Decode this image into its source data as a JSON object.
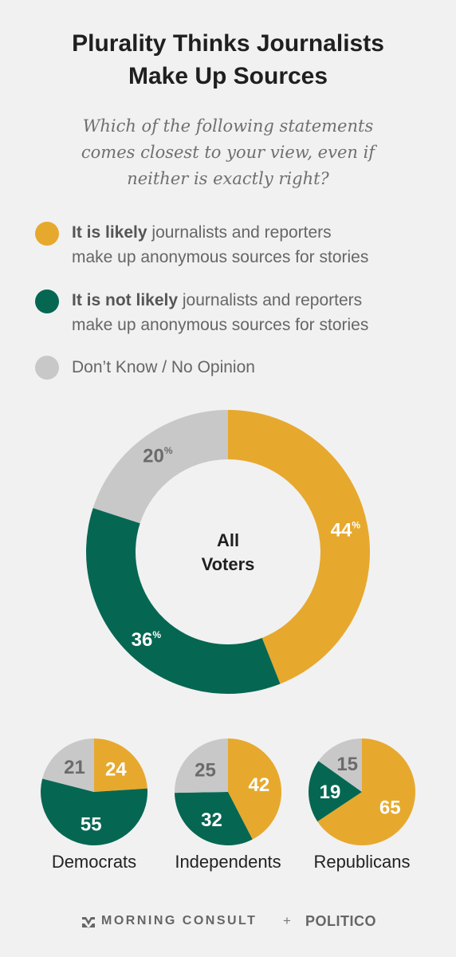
{
  "title": {
    "line1": "Plurality Thinks Journalists",
    "line2": "Make Up Sources"
  },
  "subtitle": {
    "line1": "Which of the following statements",
    "line2": "comes closest to your view, even if",
    "line3": "neither is exactly right?"
  },
  "legend": [
    {
      "bold": "It is likely",
      "rest1": " journalists and reporters",
      "rest2": "make up anonymous sources for stories",
      "color": "#e6a92e"
    },
    {
      "bold": "It is not likely",
      "rest1": " journalists and reporters",
      "rest2": "make up anonymous sources for stories",
      "color": "#056752"
    },
    {
      "bold": "",
      "rest1": "Don’t Know / No Opinion",
      "rest2": "",
      "color": "#c8c8c8"
    }
  ],
  "chart_data": [
    {
      "type": "pie",
      "title": "All Voters",
      "donut": true,
      "slices": [
        {
          "name": "It is likely",
          "value": 44,
          "color": "#e6a92e"
        },
        {
          "name": "It is not likely",
          "value": 36,
          "color": "#056752"
        },
        {
          "name": "Don’t Know / No Opinion",
          "value": 20,
          "color": "#c8c8c8"
        }
      ],
      "unit": "%"
    },
    {
      "type": "pie",
      "title": "Democrats",
      "slices": [
        {
          "name": "It is likely",
          "value": 24,
          "color": "#e6a92e"
        },
        {
          "name": "It is not likely",
          "value": 55,
          "color": "#056752"
        },
        {
          "name": "Don’t Know / No Opinion",
          "value": 21,
          "color": "#c8c8c8"
        }
      ]
    },
    {
      "type": "pie",
      "title": "Independents",
      "slices": [
        {
          "name": "It is likely",
          "value": 42,
          "color": "#e6a92e"
        },
        {
          "name": "It is not likely",
          "value": 32,
          "color": "#056752"
        },
        {
          "name": "Don’t Know / No Opinion",
          "value": 25,
          "color": "#c8c8c8"
        }
      ]
    },
    {
      "type": "pie",
      "title": "Republicans",
      "slices": [
        {
          "name": "It is likely",
          "value": 65,
          "color": "#e6a92e"
        },
        {
          "name": "It is not likely",
          "value": 19,
          "color": "#056752"
        },
        {
          "name": "Don’t Know / No Opinion",
          "value": 15,
          "color": "#c8c8c8"
        }
      ]
    }
  ],
  "footer": {
    "brand1": "MORNING CONSULT",
    "plus": "+",
    "brand2": "POLITICO"
  }
}
